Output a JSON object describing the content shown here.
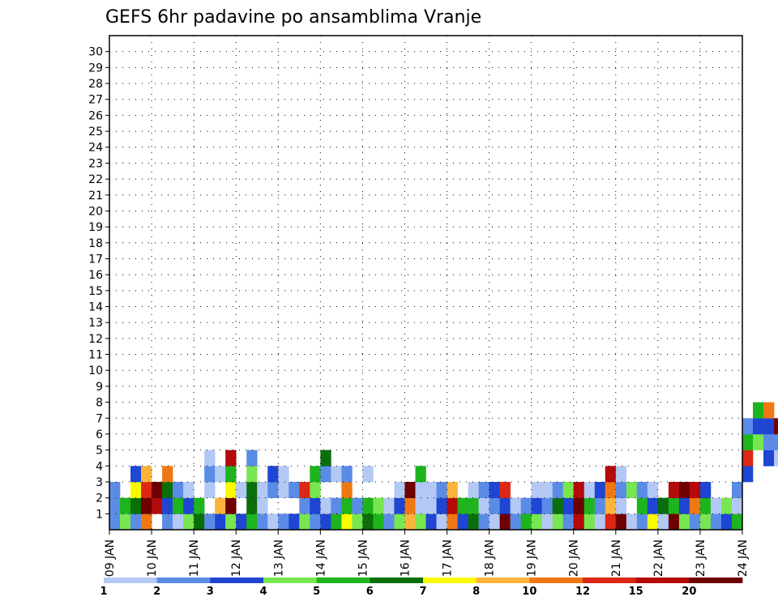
{
  "chart_data": {
    "type": "heatmap",
    "title": "GEFS 6hr padavine po ansamblima Vranje",
    "xlabel": "",
    "ylabel": "",
    "x_tick_labels": [
      "09 JAN",
      "10 JAN",
      "11 JAN",
      "12 JAN",
      "13 JAN",
      "14 JAN",
      "15 JAN",
      "16 JAN",
      "17 JAN",
      "18 JAN",
      "19 JAN",
      "20 JAN",
      "21 JAN",
      "22 JAN",
      "23 JAN",
      "24 JAN"
    ],
    "y_tick_labels": [
      "1",
      "2",
      "3",
      "4",
      "5",
      "6",
      "7",
      "8",
      "9",
      "10",
      "11",
      "12",
      "13",
      "14",
      "15",
      "16",
      "17",
      "18",
      "19",
      "20",
      "21",
      "22",
      "23",
      "24",
      "25",
      "26",
      "27",
      "28",
      "29",
      "30"
    ],
    "x_range_steps": [
      0,
      60
    ],
    "y_range": [
      0,
      30
    ],
    "grid": true,
    "colorbar": {
      "labels": [
        "1",
        "2",
        "3",
        "4",
        "5",
        "6",
        "7",
        "8",
        "10",
        "12",
        "15",
        "20"
      ],
      "colors": [
        "#b4c8f5",
        "#5a8ce6",
        "#1e46d2",
        "#78e650",
        "#1eb41e",
        "#0a6e0a",
        "#fafa00",
        "#fab43c",
        "#f07814",
        "#dc2814",
        "#b40a0a",
        "#6e0000"
      ]
    },
    "cells": [
      [
        0,
        0,
        2
      ],
      [
        1,
        0,
        2
      ],
      [
        2,
        0,
        2
      ],
      [
        0,
        1,
        4
      ],
      [
        1,
        1,
        5
      ],
      [
        0,
        2,
        2
      ],
      [
        1,
        2,
        6
      ],
      [
        2,
        2,
        7
      ],
      [
        3,
        2,
        3
      ],
      [
        0,
        3,
        9
      ],
      [
        1,
        3,
        12
      ],
      [
        2,
        3,
        10
      ],
      [
        3,
        3,
        8
      ],
      [
        1,
        4,
        11
      ],
      [
        2,
        4,
        12
      ],
      [
        0,
        5,
        2
      ],
      [
        1,
        5,
        3
      ],
      [
        2,
        5,
        6
      ],
      [
        3,
        5,
        9
      ],
      [
        0,
        6,
        1
      ],
      [
        1,
        6,
        5
      ],
      [
        2,
        6,
        2
      ],
      [
        0,
        7,
        4
      ],
      [
        1,
        7,
        3
      ],
      [
        2,
        7,
        1
      ],
      [
        0,
        8,
        6
      ],
      [
        1,
        8,
        5
      ],
      [
        0,
        9,
        2
      ],
      [
        2,
        9,
        1
      ],
      [
        3,
        9,
        2
      ],
      [
        4,
        9,
        1
      ],
      [
        0,
        10,
        3
      ],
      [
        1,
        10,
        8
      ],
      [
        3,
        10,
        1
      ],
      [
        0,
        11,
        4
      ],
      [
        1,
        11,
        12
      ],
      [
        2,
        11,
        7
      ],
      [
        3,
        11,
        5
      ],
      [
        4,
        11,
        11
      ],
      [
        0,
        12,
        3
      ],
      [
        2,
        12,
        1
      ],
      [
        0,
        13,
        5
      ],
      [
        1,
        13,
        6
      ],
      [
        2,
        13,
        6
      ],
      [
        3,
        13,
        4
      ],
      [
        4,
        13,
        2
      ],
      [
        0,
        14,
        2
      ],
      [
        1,
        14,
        1
      ],
      [
        2,
        14,
        1
      ],
      [
        0,
        15,
        1
      ],
      [
        2,
        15,
        2
      ],
      [
        3,
        15,
        3
      ],
      [
        0,
        16,
        2
      ],
      [
        2,
        16,
        1
      ],
      [
        3,
        16,
        1
      ],
      [
        0,
        17,
        3
      ],
      [
        2,
        17,
        2
      ],
      [
        0,
        18,
        4
      ],
      [
        1,
        18,
        2
      ],
      [
        2,
        18,
        10
      ],
      [
        0,
        19,
        2
      ],
      [
        1,
        19,
        3
      ],
      [
        2,
        19,
        4
      ],
      [
        3,
        19,
        5
      ],
      [
        0,
        20,
        3
      ],
      [
        1,
        20,
        1
      ],
      [
        3,
        20,
        2
      ],
      [
        4,
        20,
        6
      ],
      [
        0,
        21,
        5
      ],
      [
        1,
        21,
        2
      ],
      [
        3,
        21,
        1
      ],
      [
        0,
        22,
        7
      ],
      [
        1,
        22,
        5
      ],
      [
        2,
        22,
        9
      ],
      [
        3,
        22,
        2
      ],
      [
        0,
        23,
        4
      ],
      [
        1,
        23,
        2
      ],
      [
        0,
        24,
        6
      ],
      [
        1,
        24,
        5
      ],
      [
        3,
        24,
        1
      ],
      [
        0,
        25,
        5
      ],
      [
        1,
        25,
        4
      ],
      [
        0,
        26,
        2
      ],
      [
        1,
        26,
        1
      ],
      [
        0,
        27,
        4
      ],
      [
        1,
        27,
        3
      ],
      [
        2,
        27,
        1
      ],
      [
        0,
        28,
        8
      ],
      [
        1,
        28,
        9
      ],
      [
        2,
        28,
        12
      ],
      [
        0,
        29,
        4
      ],
      [
        1,
        29,
        1
      ],
      [
        2,
        29,
        1
      ],
      [
        3,
        29,
        5
      ],
      [
        0,
        30,
        3
      ],
      [
        1,
        30,
        1
      ],
      [
        2,
        30,
        1
      ],
      [
        0,
        31,
        1
      ],
      [
        1,
        31,
        3
      ],
      [
        2,
        31,
        2
      ],
      [
        0,
        32,
        9
      ],
      [
        1,
        32,
        11
      ],
      [
        2,
        32,
        8
      ],
      [
        0,
        33,
        3
      ],
      [
        1,
        33,
        5
      ],
      [
        0,
        34,
        6
      ],
      [
        1,
        34,
        5
      ],
      [
        2,
        34,
        1
      ],
      [
        0,
        35,
        2
      ],
      [
        1,
        35,
        1
      ],
      [
        2,
        35,
        2
      ],
      [
        0,
        36,
        1
      ],
      [
        1,
        36,
        2
      ],
      [
        2,
        36,
        3
      ],
      [
        0,
        37,
        12
      ],
      [
        1,
        37,
        3
      ],
      [
        2,
        37,
        10
      ],
      [
        0,
        38,
        2
      ],
      [
        1,
        38,
        1
      ],
      [
        0,
        39,
        5
      ],
      [
        1,
        39,
        2
      ],
      [
        0,
        40,
        4
      ],
      [
        1,
        40,
        3
      ],
      [
        2,
        40,
        1
      ],
      [
        0,
        41,
        1
      ],
      [
        1,
        41,
        2
      ],
      [
        2,
        41,
        1
      ],
      [
        0,
        42,
        4
      ],
      [
        1,
        42,
        6
      ],
      [
        2,
        42,
        2
      ],
      [
        0,
        43,
        2
      ],
      [
        1,
        43,
        3
      ],
      [
        2,
        43,
        4
      ],
      [
        0,
        44,
        11
      ],
      [
        1,
        44,
        12
      ],
      [
        2,
        44,
        11
      ],
      [
        0,
        45,
        4
      ],
      [
        1,
        45,
        5
      ],
      [
        2,
        45,
        1
      ],
      [
        0,
        46,
        1
      ],
      [
        1,
        46,
        2
      ],
      [
        2,
        46,
        3
      ],
      [
        0,
        47,
        10
      ],
      [
        1,
        47,
        8
      ],
      [
        2,
        47,
        9
      ],
      [
        3,
        47,
        11
      ],
      [
        0,
        48,
        12
      ],
      [
        1,
        48,
        1
      ],
      [
        2,
        48,
        2
      ],
      [
        3,
        48,
        1
      ],
      [
        0,
        49,
        1
      ],
      [
        2,
        49,
        4
      ],
      [
        0,
        50,
        2
      ],
      [
        1,
        50,
        5
      ],
      [
        2,
        50,
        2
      ],
      [
        0,
        51,
        7
      ],
      [
        1,
        51,
        3
      ],
      [
        2,
        51,
        1
      ],
      [
        0,
        52,
        1
      ],
      [
        1,
        52,
        6
      ],
      [
        0,
        53,
        12
      ],
      [
        1,
        53,
        5
      ],
      [
        2,
        53,
        11
      ],
      [
        0,
        54,
        4
      ],
      [
        1,
        54,
        3
      ],
      [
        2,
        54,
        12
      ],
      [
        0,
        55,
        2
      ],
      [
        1,
        55,
        9
      ],
      [
        2,
        55,
        11
      ],
      [
        0,
        56,
        4
      ],
      [
        1,
        56,
        5
      ],
      [
        2,
        56,
        3
      ],
      [
        0,
        57,
        2
      ],
      [
        1,
        57,
        1
      ],
      [
        0,
        58,
        3
      ],
      [
        1,
        58,
        4
      ],
      [
        0,
        59,
        5
      ],
      [
        1,
        59,
        1
      ],
      [
        2,
        59,
        2
      ],
      [
        3,
        60,
        3
      ],
      [
        4,
        60,
        10
      ],
      [
        5,
        60,
        5
      ],
      [
        6,
        60,
        2
      ],
      [
        5,
        61,
        4
      ],
      [
        6,
        61,
        3
      ],
      [
        7,
        61,
        5
      ],
      [
        4,
        62,
        3
      ],
      [
        5,
        62,
        2
      ],
      [
        6,
        62,
        3
      ],
      [
        7,
        62,
        9
      ],
      [
        4,
        63,
        1
      ],
      [
        5,
        63,
        2
      ],
      [
        6,
        63,
        12
      ],
      [
        4,
        64,
        2
      ],
      [
        5,
        64,
        6
      ],
      [
        6,
        64,
        3
      ],
      [
        7,
        64,
        3
      ],
      [
        3,
        65,
        2
      ],
      [
        4,
        65,
        9
      ],
      [
        5,
        65,
        7
      ],
      [
        6,
        65,
        2
      ],
      [
        3,
        66,
        1
      ],
      [
        4,
        66,
        12
      ],
      [
        5,
        66,
        5
      ],
      [
        6,
        66,
        1
      ],
      [
        4,
        67,
        1
      ],
      [
        5,
        67,
        2
      ],
      [
        6,
        67,
        2
      ],
      [
        3,
        68,
        1
      ],
      [
        4,
        68,
        1
      ],
      [
        5,
        68,
        11
      ],
      [
        4,
        69,
        3
      ],
      [
        5,
        69,
        12
      ],
      [
        6,
        69,
        3
      ],
      [
        4,
        70,
        4
      ],
      [
        5,
        70,
        11
      ],
      [
        6,
        70,
        8
      ],
      [
        4,
        71,
        2
      ],
      [
        5,
        71,
        5
      ],
      [
        3,
        72,
        1
      ],
      [
        4,
        72,
        3
      ],
      [
        5,
        72,
        8
      ],
      [
        4,
        73,
        6
      ],
      [
        5,
        73,
        3
      ],
      [
        6,
        73,
        2
      ],
      [
        4,
        74,
        2
      ],
      [
        5,
        74,
        1
      ],
      [
        3,
        75,
        3
      ],
      [
        4,
        75,
        6
      ],
      [
        5,
        75,
        5
      ],
      [
        4,
        76,
        2
      ],
      [
        5,
        76,
        1
      ],
      [
        6,
        76,
        2
      ],
      [
        3,
        77,
        9
      ],
      [
        4,
        77,
        12
      ],
      [
        5,
        77,
        10
      ],
      [
        3,
        78,
        2
      ],
      [
        4,
        78,
        1
      ],
      [
        5,
        78,
        2
      ],
      [
        4,
        79,
        4
      ],
      [
        5,
        79,
        3
      ],
      [
        3,
        80,
        2
      ],
      [
        4,
        80,
        1
      ],
      [
        5,
        80,
        1
      ],
      [
        3,
        81,
        1
      ],
      [
        4,
        81,
        4
      ],
      [
        3,
        82,
        12
      ],
      [
        4,
        82,
        3
      ],
      [
        5,
        82,
        9
      ],
      [
        3,
        83,
        6
      ],
      [
        4,
        83,
        2
      ],
      [
        5,
        83,
        1
      ],
      [
        3,
        84,
        3
      ],
      [
        4,
        84,
        8
      ],
      [
        3,
        85,
        4
      ],
      [
        4,
        85,
        5
      ],
      [
        5,
        85,
        12
      ],
      [
        3,
        86,
        2
      ],
      [
        4,
        86,
        11
      ],
      [
        5,
        86,
        11
      ],
      [
        3,
        87,
        1
      ],
      [
        4,
        87,
        5
      ],
      [
        5,
        87,
        7
      ],
      [
        3,
        88,
        12
      ],
      [
        4,
        88,
        8
      ],
      [
        5,
        88,
        3
      ],
      [
        4,
        89,
        4
      ],
      [
        5,
        89,
        9
      ],
      [
        6,
        89,
        1
      ],
      [
        4,
        90,
        2
      ],
      [
        5,
        90,
        1
      ],
      [
        6,
        90,
        6
      ],
      [
        3,
        91,
        7
      ],
      [
        4,
        91,
        3
      ],
      [
        6,
        91,
        2
      ],
      [
        3,
        92,
        1
      ],
      [
        4,
        92,
        1
      ],
      [
        6,
        92,
        1
      ],
      [
        3,
        93,
        4
      ],
      [
        4,
        93,
        2
      ],
      [
        6,
        93,
        1
      ],
      [
        3,
        94,
        4
      ],
      [
        4,
        94,
        5
      ],
      [
        5,
        94,
        1
      ],
      [
        3,
        95,
        3
      ],
      [
        4,
        95,
        9
      ],
      [
        5,
        95,
        10
      ],
      [
        3,
        96,
        11
      ],
      [
        4,
        96,
        2
      ],
      [
        5,
        96,
        1
      ],
      [
        3,
        97,
        2
      ],
      [
        4,
        97,
        12
      ],
      [
        3,
        98,
        6
      ],
      [
        4,
        98,
        2
      ],
      [
        5,
        98,
        1
      ],
      [
        3,
        99,
        2
      ],
      [
        4,
        99,
        1
      ],
      [
        3,
        100,
        1
      ],
      [
        4,
        100,
        3
      ],
      [
        3,
        101,
        5
      ],
      [
        4,
        101,
        4
      ],
      [
        3,
        102,
        3
      ],
      [
        3,
        103,
        10
      ],
      [
        4,
        103,
        2
      ],
      [
        3,
        104,
        11
      ],
      [
        4,
        104,
        1
      ],
      [
        3,
        105,
        2
      ],
      [
        4,
        105,
        6
      ],
      [
        3,
        106,
        4
      ],
      [
        4,
        106,
        1
      ],
      [
        3,
        107,
        1
      ],
      [
        4,
        107,
        2
      ],
      [
        4,
        110,
        1
      ],
      [
        4,
        111,
        3
      ],
      [
        5,
        111,
        1
      ],
      [
        5,
        112,
        1
      ],
      [
        5,
        113,
        2
      ],
      [
        5,
        114,
        3
      ],
      [
        6,
        114,
        1
      ],
      [
        4,
        115,
        1
      ],
      [
        5,
        115,
        2
      ],
      [
        6,
        115,
        1
      ],
      [
        4,
        116,
        1
      ],
      [
        5,
        116,
        3
      ],
      [
        6,
        116,
        12
      ],
      [
        4,
        117,
        2
      ],
      [
        5,
        117,
        3
      ],
      [
        6,
        117,
        1
      ],
      [
        4,
        118,
        1
      ],
      [
        5,
        118,
        1
      ],
      [
        6,
        118,
        2
      ],
      [
        5,
        120,
        1
      ],
      [
        6,
        120,
        9
      ],
      [
        7,
        120,
        3
      ],
      [
        5,
        121,
        1
      ],
      [
        6,
        121,
        1
      ],
      [
        7,
        121,
        2
      ],
      [
        5,
        122,
        3
      ],
      [
        6,
        122,
        1
      ],
      [
        7,
        122,
        4
      ],
      [
        5,
        123,
        2
      ],
      [
        6,
        123,
        1
      ],
      [
        7,
        123,
        3
      ],
      [
        5,
        124,
        1
      ],
      [
        6,
        124,
        2
      ],
      [
        7,
        124,
        1
      ],
      [
        5,
        125,
        3
      ],
      [
        6,
        125,
        2
      ],
      [
        7,
        125,
        1
      ],
      [
        5,
        126,
        1
      ],
      [
        6,
        126,
        3
      ],
      [
        5,
        127,
        2
      ],
      [
        6,
        127,
        1
      ],
      [
        5,
        128,
        1
      ],
      [
        6,
        128,
        3
      ],
      [
        5,
        129,
        2
      ],
      [
        6,
        129,
        1
      ]
    ]
  }
}
